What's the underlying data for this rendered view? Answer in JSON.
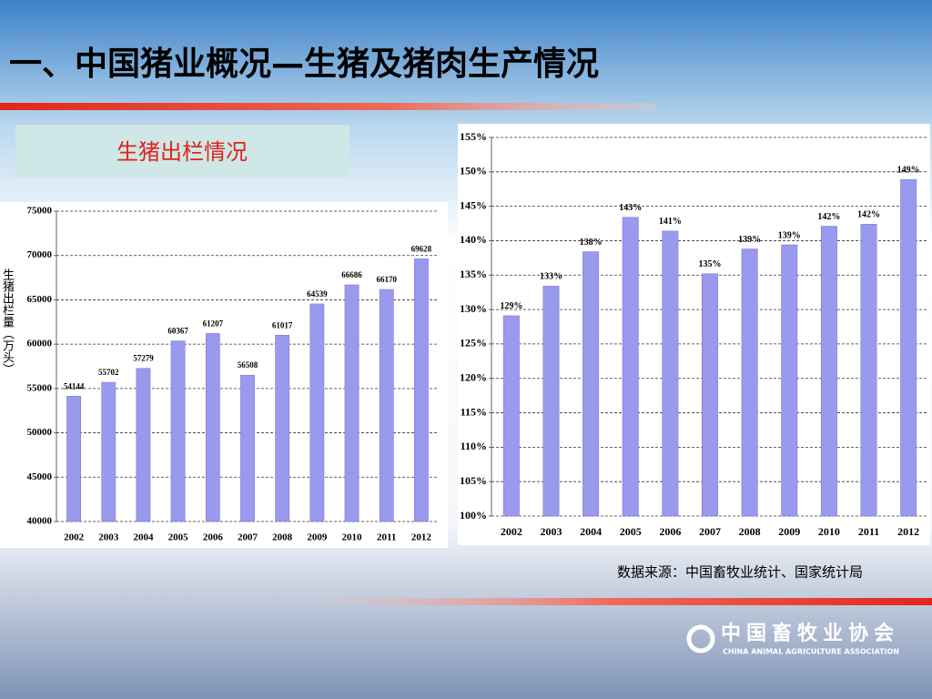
{
  "title": "一、中国猪业概况—生猪及猪肉生产情况",
  "subtitle": "生猪出栏情况",
  "source": "数据来源：中国畜牧业统计、国家统计局",
  "logo": {
    "name": "中国畜牧业协会",
    "name_en": "CHINA ANIMAL AGRICULTURE ASSOCIATION"
  },
  "chart_data": [
    {
      "type": "bar",
      "y_label": "生猪出栏量（万头）",
      "categories": [
        "2002",
        "2003",
        "2004",
        "2005",
        "2006",
        "2007",
        "2008",
        "2009",
        "2010",
        "2011",
        "2012"
      ],
      "values": [
        54144,
        55702,
        57279,
        60367,
        61207,
        56508,
        61017,
        64539,
        66686,
        66170,
        69628
      ],
      "color": "#9999ee",
      "ylim": [
        40000,
        75000
      ],
      "yticks": [
        40000,
        45000,
        50000,
        55000,
        60000,
        65000,
        70000,
        75000
      ],
      "grid": true
    },
    {
      "type": "bar",
      "categories": [
        "2002",
        "2003",
        "2004",
        "2005",
        "2006",
        "2007",
        "2008",
        "2009",
        "2010",
        "2011",
        "2012"
      ],
      "values": [
        129.1,
        133.4,
        138.4,
        143.4,
        141.4,
        135.2,
        138.8,
        139.4,
        142.1,
        142.4,
        148.9
      ],
      "value_labels": [
        "129%",
        "133%",
        "138%",
        "143%",
        "141%",
        "135%",
        "139%",
        "139%",
        "142%",
        "142%",
        "149%"
      ],
      "color": "#9999ee",
      "ylim": [
        100,
        155
      ],
      "yticks": [
        {
          "value": 100,
          "label": "100%"
        },
        {
          "value": 105,
          "label": "105%"
        },
        {
          "value": 110,
          "label": "110%"
        },
        {
          "value": 115,
          "label": "115%"
        },
        {
          "value": 120,
          "label": "120%"
        },
        {
          "value": 125,
          "label": "125%"
        },
        {
          "value": 130,
          "label": "130%"
        },
        {
          "value": 135,
          "label": "135%"
        },
        {
          "value": 140,
          "label": "140%"
        },
        {
          "value": 145,
          "label": "145%"
        },
        {
          "value": 150,
          "label": "150%"
        },
        {
          "value": 155,
          "label": "155%"
        }
      ],
      "grid": true
    }
  ]
}
